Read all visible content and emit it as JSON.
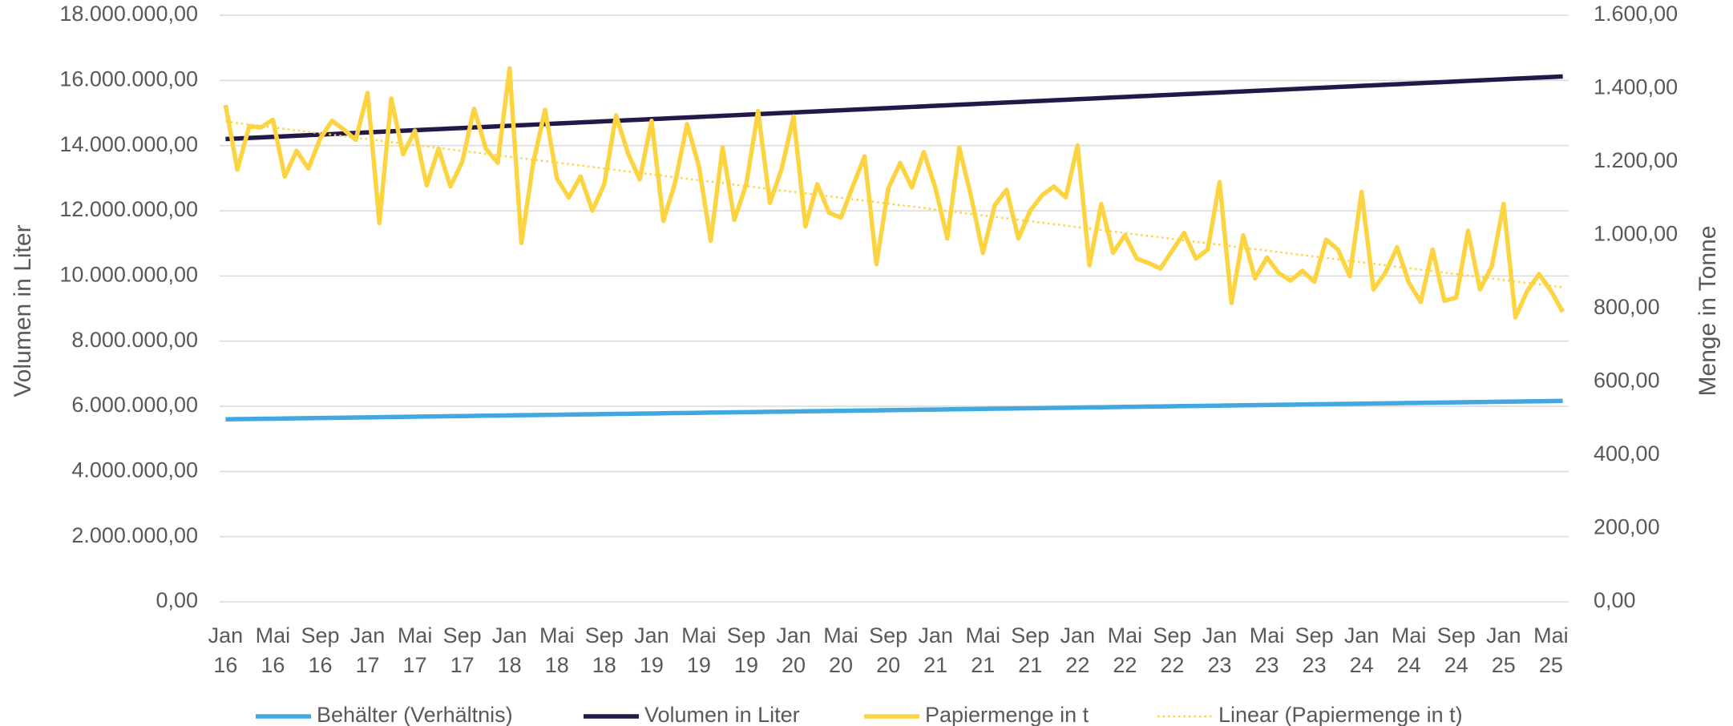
{
  "chart_data": {
    "type": "line",
    "ylabel": "Volumen in Liter",
    "y2label": "Menge in Tonne",
    "categories": [
      "Jan 16",
      null,
      null,
      null,
      "Mai 16",
      null,
      null,
      null,
      "Sep 16",
      null,
      null,
      null,
      "Jan 17",
      null,
      null,
      null,
      "Mai 17",
      null,
      null,
      null,
      "Sep 17",
      null,
      null,
      null,
      "Jan 18",
      null,
      null,
      null,
      "Mai 18",
      null,
      null,
      null,
      "Sep 18",
      null,
      null,
      null,
      "Jan 19",
      null,
      null,
      null,
      "Mai 19",
      null,
      null,
      null,
      "Sep 19",
      null,
      null,
      null,
      "Jan 20",
      null,
      null,
      null,
      "Mai 20",
      null,
      null,
      null,
      "Sep 20",
      null,
      null,
      null,
      "Jan 21",
      null,
      null,
      null,
      "Mai 21",
      null,
      null,
      null,
      "Sep 21",
      null,
      null,
      null,
      "Jan 22",
      null,
      null,
      null,
      "Mai 22",
      null,
      null,
      null,
      "Sep 22",
      null,
      null,
      null,
      "Jan 23",
      null,
      null,
      null,
      "Mai 23",
      null,
      null,
      null,
      "Sep 23",
      null,
      null,
      null,
      "Jan 24",
      null,
      null,
      null,
      "Mai 24",
      null,
      null,
      null,
      "Sep 24",
      null,
      null,
      null,
      "Jan 25",
      null,
      null,
      null,
      "Mai 25",
      null
    ],
    "series": [
      {
        "name": "Behälter (Verhältnis)",
        "color": "#41a8e0",
        "axis": "y",
        "dash": "solid",
        "values": [
          5600000,
          5605000,
          5610000,
          5615000,
          5620000,
          5625000,
          5630000,
          5635000,
          5640000,
          5645000,
          5650000,
          5655000,
          5660000,
          5665000,
          5670000,
          5675000,
          5680000,
          5685000,
          5690000,
          5695000,
          5700000,
          5705000,
          5710000,
          5715000,
          5720000,
          5725000,
          5730000,
          5735000,
          5740000,
          5745000,
          5750000,
          5755000,
          5760000,
          5765000,
          5770000,
          5775000,
          5780000,
          5785000,
          5790000,
          5795000,
          5800000,
          5805000,
          5810000,
          5815000,
          5820000,
          5825000,
          5830000,
          5835000,
          5840000,
          5845000,
          5850000,
          5855000,
          5860000,
          5865000,
          5870000,
          5875000,
          5880000,
          5885000,
          5890000,
          5895000,
          5900000,
          5905000,
          5910000,
          5915000,
          5920000,
          5925000,
          5930000,
          5935000,
          5940000,
          5945000,
          5950000,
          5955000,
          5960000,
          5965000,
          5970000,
          5975000,
          5980000,
          5985000,
          5990000,
          5995000,
          6000000,
          6005000,
          6010000,
          6015000,
          6020000,
          6025000,
          6030000,
          6035000,
          6040000,
          6045000,
          6050000,
          6055000,
          6060000,
          6065000,
          6070000,
          6075000,
          6080000,
          6085000,
          6090000,
          6095000,
          6100000,
          6105000,
          6110000,
          6115000,
          6120000,
          6125000,
          6130000,
          6135000,
          6140000,
          6145000,
          6150000,
          6155000,
          6160000,
          6165000
        ]
      },
      {
        "name": "Volumen in Liter",
        "color": "#24174a",
        "axis": "y",
        "dash": "solid",
        "values": [
          14200000,
          14217000,
          14234000,
          14251000,
          14268000,
          14285000,
          14302000,
          14319000,
          14336000,
          14353000,
          14370000,
          14387000,
          14404000,
          14421000,
          14438000,
          14455000,
          14472000,
          14489000,
          14506000,
          14523000,
          14540000,
          14557000,
          14574000,
          14591000,
          14608000,
          14625000,
          14642000,
          14659000,
          14676000,
          14693000,
          14710000,
          14727000,
          14744000,
          14761000,
          14778000,
          14795000,
          14812000,
          14829000,
          14846000,
          14863000,
          14880000,
          14897000,
          14914000,
          14931000,
          14948000,
          14965000,
          14982000,
          14999000,
          15016000,
          15033000,
          15050000,
          15067000,
          15084000,
          15101000,
          15118000,
          15135000,
          15152000,
          15169000,
          15186000,
          15203000,
          15220000,
          15237000,
          15254000,
          15271000,
          15288000,
          15305000,
          15322000,
          15339000,
          15356000,
          15373000,
          15390000,
          15407000,
          15424000,
          15441000,
          15458000,
          15475000,
          15492000,
          15509000,
          15526000,
          15543000,
          15560000,
          15577000,
          15594000,
          15611000,
          15628000,
          15645000,
          15662000,
          15679000,
          15696000,
          15713000,
          15730000,
          15747000,
          15764000,
          15781000,
          15798000,
          15815000,
          15832000,
          15849000,
          15866000,
          15883000,
          15900000,
          15917000,
          15934000,
          15951000,
          15968000,
          15985000,
          16002000,
          16019000,
          16036000,
          16053000,
          16070000,
          16087000,
          16104000,
          16121000
        ]
      },
      {
        "name": "Papiermenge in t",
        "color": "#fcd442",
        "axis": "y2",
        "dash": "solid",
        "values": [
          1355,
          1179,
          1297,
          1294,
          1315,
          1160,
          1230,
          1182,
          1264,
          1312,
          1288,
          1260,
          1388,
          1033,
          1373,
          1221,
          1285,
          1136,
          1236,
          1133,
          1200,
          1345,
          1236,
          1197,
          1455,
          979,
          1197,
          1342,
          1155,
          1103,
          1160,
          1067,
          1139,
          1327,
          1224,
          1152,
          1312,
          1039,
          1145,
          1303,
          1188,
          985,
          1239,
          1042,
          1139,
          1339,
          1088,
          1182,
          1324,
          1024,
          1139,
          1061,
          1048,
          1133,
          1215,
          921,
          1127,
          1197,
          1130,
          1227,
          1127,
          991,
          1239,
          1106,
          952,
          1082,
          1124,
          991,
          1067,
          1109,
          1133,
          1103,
          1245,
          918,
          1085,
          952,
          1000,
          936,
          924,
          909,
          958,
          1006,
          936,
          961,
          1145,
          815,
          1000,
          882,
          939,
          897,
          876,
          903,
          873,
          988,
          961,
          888,
          1118,
          852,
          897,
          967,
          870,
          818,
          961,
          821,
          830,
          1012,
          852,
          915,
          1085,
          776,
          848,
          894,
          848,
          791
        ]
      },
      {
        "name": "Linear (Papiermenge in t)",
        "color": "#fcd442",
        "axis": "y2",
        "dash": "dotted",
        "values": [
          1310,
          1306,
          1302,
          1298,
          1294,
          1290,
          1286,
          1282,
          1278,
          1274,
          1270,
          1266,
          1262,
          1258,
          1254,
          1250,
          1246,
          1242,
          1238,
          1234,
          1230,
          1226,
          1222,
          1218,
          1214,
          1210,
          1206,
          1202,
          1198,
          1194,
          1190,
          1186,
          1182,
          1178,
          1174,
          1170,
          1166,
          1162,
          1158,
          1154,
          1150,
          1146,
          1142,
          1138,
          1134,
          1130,
          1126,
          1122,
          1118,
          1114,
          1110,
          1106,
          1102,
          1098,
          1094,
          1090,
          1086,
          1082,
          1078,
          1074,
          1070,
          1066,
          1062,
          1058,
          1054,
          1050,
          1046,
          1042,
          1038,
          1034,
          1030,
          1026,
          1022,
          1018,
          1014,
          1010,
          1006,
          1002,
          998,
          994,
          990,
          986,
          982,
          978,
          974,
          970,
          966,
          962,
          958,
          954,
          950,
          946,
          942,
          938,
          934,
          930,
          926,
          922,
          918,
          914,
          910,
          906,
          902,
          898,
          894,
          890,
          886,
          882,
          878,
          874,
          870,
          866,
          862,
          858
        ]
      }
    ],
    "ylim": [
      0,
      18000000
    ],
    "yticks": [
      {
        "value": 0,
        "label": "0,00"
      },
      {
        "value": 2000000,
        "label": "2.000.000,00"
      },
      {
        "value": 4000000,
        "label": "4.000.000,00"
      },
      {
        "value": 6000000,
        "label": "6.000.000,00"
      },
      {
        "value": 8000000,
        "label": "8.000.000,00"
      },
      {
        "value": 10000000,
        "label": "10.000.000,00"
      },
      {
        "value": 12000000,
        "label": "12.000.000,00"
      },
      {
        "value": 14000000,
        "label": "14.000.000,00"
      },
      {
        "value": 16000000,
        "label": "16.000.000,00"
      },
      {
        "value": 18000000,
        "label": "18.000.000,00"
      }
    ],
    "y2lim": [
      0,
      1600
    ],
    "y2ticks": [
      {
        "value": 0,
        "label": "0,00"
      },
      {
        "value": 200,
        "label": "200,00"
      },
      {
        "value": 400,
        "label": "400,00"
      },
      {
        "value": 600,
        "label": "600,00"
      },
      {
        "value": 800,
        "label": "800,00"
      },
      {
        "value": 1000,
        "label": "1.000,00"
      },
      {
        "value": 1200,
        "label": "1.200,00"
      },
      {
        "value": 1400,
        "label": "1.400,00"
      },
      {
        "value": 1600,
        "label": "1.600,00"
      }
    ],
    "grid": true,
    "legend": "bottom"
  }
}
